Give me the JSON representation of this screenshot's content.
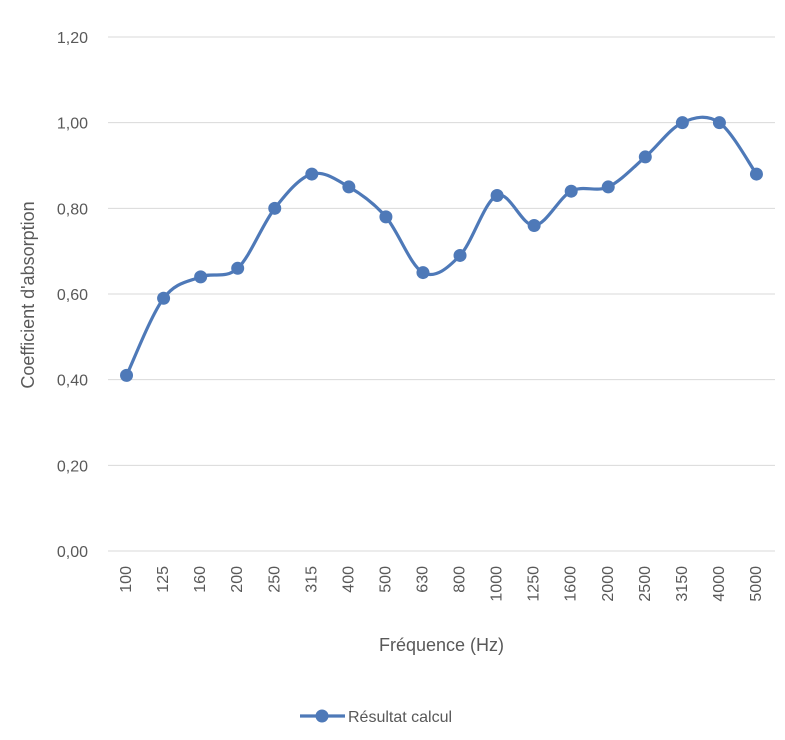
{
  "chart_data": {
    "type": "line",
    "xlabel": "Fréquence (Hz)",
    "ylabel": "Coefficient d'absorption",
    "categories": [
      "100",
      "125",
      "160",
      "200",
      "250",
      "315",
      "400",
      "500",
      "630",
      "800",
      "1000",
      "1250",
      "1600",
      "2000",
      "2500",
      "3150",
      "4000",
      "5000"
    ],
    "series": [
      {
        "name": "Résultat calcul",
        "values": [
          0.41,
          0.59,
          0.64,
          0.66,
          0.8,
          0.88,
          0.85,
          0.78,
          0.65,
          0.69,
          0.83,
          0.76,
          0.84,
          0.85,
          0.92,
          1.0,
          1.0,
          0.88
        ],
        "color": "#4e79b8",
        "smooth": true,
        "marker": "circle"
      }
    ],
    "ylim": [
      0,
      1.2
    ],
    "yticks": [
      "0,00",
      "0,20",
      "0,40",
      "0,60",
      "0,80",
      "1,00",
      "1,20"
    ],
    "grid": true,
    "legend_position": "bottom",
    "colors": {
      "grid": "#d9d9d9",
      "text": "#595959"
    }
  }
}
